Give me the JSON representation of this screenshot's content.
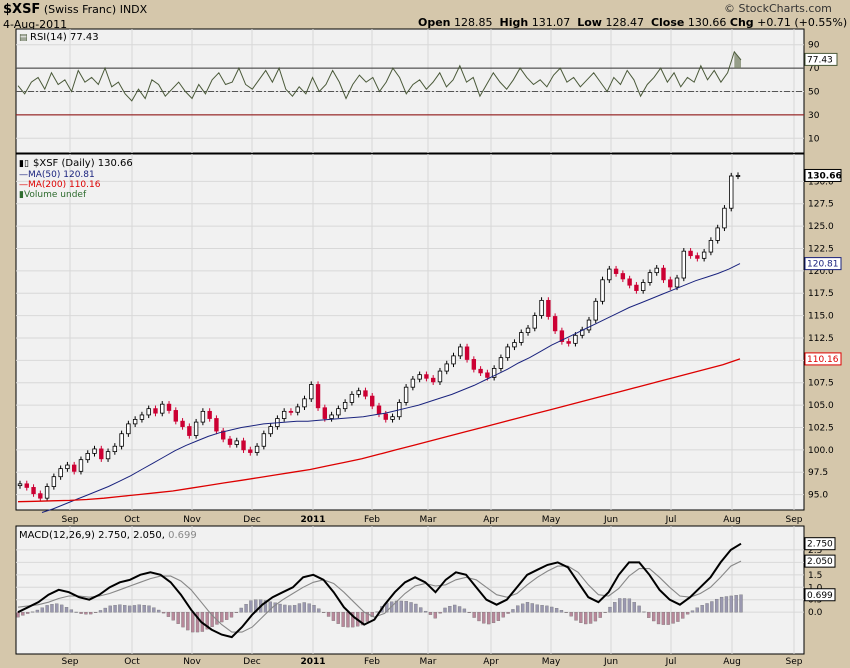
{
  "header": {
    "symbol": "$XSF",
    "name": "(Swiss Franc)",
    "exchange": "INDX",
    "date": "4-Aug-2011",
    "open_label": "Open",
    "open": "128.85",
    "high_label": "High",
    "high": "131.07",
    "low_label": "Low",
    "low": "128.47",
    "close_label": "Close",
    "close": "130.66",
    "chg_label": "Chg",
    "chg": "+0.71 (+0.55%)",
    "copyright": "© StockCharts.com"
  },
  "colors": {
    "up": "#000000",
    "down": "#cc0033",
    "ma50": "#1a237e",
    "ma200": "#dd0000",
    "rsi": "#4b5a3a",
    "panel_bg": "#f1f1f1"
  },
  "chart_data": [
    {
      "type": "line",
      "title": "RSI(14) 77.43",
      "series": [
        {
          "name": "RSI(14)",
          "last": 77.43,
          "values": [
            55,
            48,
            58,
            62,
            52,
            66,
            56,
            60,
            50,
            68,
            58,
            62,
            56,
            70,
            54,
            58,
            48,
            42,
            52,
            44,
            60,
            56,
            46,
            52,
            58,
            50,
            44,
            56,
            48,
            60,
            66,
            56,
            58,
            70,
            56,
            52,
            60,
            68,
            58,
            70,
            52,
            46,
            54,
            48,
            62,
            50,
            56,
            68,
            58,
            44,
            56,
            64,
            58,
            62,
            50,
            58,
            70,
            62,
            48,
            56,
            60,
            52,
            58,
            66,
            54,
            60,
            72,
            58,
            62,
            46,
            56,
            66,
            58,
            52,
            60,
            70,
            62,
            56,
            60,
            54,
            64,
            70,
            58,
            62,
            54,
            60,
            66,
            58,
            50,
            62,
            56,
            68,
            60,
            46,
            56,
            62,
            70,
            58,
            66,
            54,
            62,
            58,
            72,
            60,
            68,
            58,
            66,
            84,
            77
          ]
        }
      ],
      "ylim": [
        0,
        100
      ],
      "ticks": [
        10,
        30,
        50,
        70,
        90
      ],
      "reference_lines": [
        30,
        50,
        70
      ],
      "x_labels": [
        "Sep",
        "Oct",
        "Nov",
        "Dec",
        "2011",
        "Feb",
        "Mar",
        "Apr",
        "May",
        "Jun",
        "Jul",
        "Aug",
        "Sep"
      ]
    },
    {
      "type": "ohlc",
      "title": "$XSF (Daily) 130.66",
      "legend": [
        {
          "name": "MA(50) 120.81"
        },
        {
          "name": "MA(200) 110.16"
        },
        {
          "name": "Volume undef"
        }
      ],
      "close": [
        96.2,
        95.8,
        95.1,
        94.6,
        95.9,
        97.0,
        97.9,
        98.3,
        97.6,
        98.9,
        99.6,
        100.1,
        99.0,
        99.8,
        100.4,
        101.8,
        102.9,
        103.4,
        103.9,
        104.6,
        104.1,
        105.1,
        104.4,
        103.2,
        102.6,
        101.6,
        103.1,
        104.3,
        103.5,
        102.1,
        101.2,
        100.6,
        101.0,
        100.0,
        99.7,
        100.4,
        101.8,
        102.6,
        103.5,
        104.3,
        104.2,
        104.8,
        105.7,
        107.3,
        104.7,
        103.5,
        103.9,
        104.6,
        105.3,
        106.2,
        106.6,
        106.0,
        104.9,
        104.0,
        103.4,
        103.7,
        105.3,
        107.0,
        107.9,
        108.4,
        108.0,
        107.6,
        108.8,
        109.6,
        110.5,
        111.5,
        110.1,
        109.0,
        108.6,
        108.1,
        109.1,
        110.3,
        111.5,
        112.0,
        113.1,
        113.6,
        115.0,
        116.7,
        114.9,
        113.3,
        112.1,
        111.9,
        112.8,
        113.4,
        114.5,
        116.6,
        119.0,
        120.2,
        119.7,
        119.1,
        118.4,
        117.8,
        118.7,
        119.8,
        120.3,
        119.0,
        118.2,
        119.2,
        122.2,
        121.7,
        121.4,
        122.1,
        123.4,
        124.8,
        127.0,
        130.6,
        130.66
      ],
      "ma50": [
        93.0,
        93.4,
        93.9,
        94.4,
        94.9,
        95.4,
        95.9,
        96.5,
        97.1,
        97.8,
        98.5,
        99.2,
        99.9,
        100.5,
        101.0,
        101.5,
        101.9,
        102.2,
        102.5,
        102.7,
        102.9,
        103.0,
        103.1,
        103.2,
        103.2,
        103.3,
        103.4,
        103.5,
        103.6,
        103.7,
        103.9,
        104.1,
        104.4,
        104.7,
        105.0,
        105.4,
        105.8,
        106.2,
        106.7,
        107.2,
        107.8,
        108.4,
        109.0,
        109.7,
        110.3,
        111.0,
        111.7,
        112.3,
        112.9,
        113.5,
        114.1,
        114.7,
        115.3,
        115.9,
        116.4,
        116.9,
        117.4,
        117.9,
        118.4,
        118.9,
        119.3,
        119.7,
        120.2,
        120.81
      ],
      "ma200": [
        94.2,
        94.25,
        94.3,
        94.35,
        94.45,
        94.6,
        94.8,
        95.0,
        95.2,
        95.4,
        95.7,
        96.0,
        96.3,
        96.6,
        96.9,
        97.2,
        97.5,
        97.8,
        98.2,
        98.6,
        99.0,
        99.5,
        100.0,
        100.5,
        101.0,
        101.5,
        102.0,
        102.5,
        103.0,
        103.5,
        104.0,
        104.5,
        105.0,
        105.5,
        106.0,
        106.5,
        107.0,
        107.5,
        108.0,
        108.5,
        109.0,
        109.5,
        110.16
      ],
      "ylim": [
        93.5,
        132.5
      ],
      "ticks": [
        95.0,
        97.5,
        100.0,
        102.5,
        105.0,
        107.5,
        110.0,
        112.5,
        115.0,
        117.5,
        120.0,
        122.5,
        125.0,
        127.5,
        130.0
      ],
      "last_markers": [
        "130.66",
        "120.81",
        "110.16"
      ],
      "x_labels": [
        "Sep",
        "Oct",
        "Nov",
        "Dec",
        "2011",
        "Feb",
        "Mar",
        "Apr",
        "May",
        "Jun",
        "Jul",
        "Aug",
        "Sep"
      ]
    },
    {
      "type": "line",
      "title": "MACD(12,26,9) 2.750, 2.050, 0.699",
      "title_parts": [
        "MACD(12,26,9)",
        "2.750,",
        "2.050,",
        "0.699"
      ],
      "series": [
        {
          "name": "MACD",
          "last": 2.75,
          "values": [
            0.0,
            0.2,
            0.4,
            0.7,
            0.9,
            0.8,
            0.6,
            0.5,
            0.7,
            1.0,
            1.2,
            1.3,
            1.5,
            1.6,
            1.5,
            1.2,
            0.7,
            0.1,
            -0.4,
            -0.7,
            -0.9,
            -1.0,
            -0.6,
            -0.1,
            0.3,
            0.6,
            0.8,
            1.0,
            1.4,
            1.5,
            1.3,
            0.8,
            0.2,
            -0.2,
            -0.5,
            -0.3,
            0.3,
            0.8,
            1.2,
            1.4,
            1.2,
            0.8,
            1.3,
            1.6,
            1.5,
            1.0,
            0.5,
            0.3,
            0.5,
            1.0,
            1.5,
            1.7,
            1.9,
            2.0,
            1.8,
            1.2,
            0.6,
            0.4,
            0.8,
            1.5,
            2.0,
            2.0,
            1.5,
            0.9,
            0.5,
            0.3,
            0.6,
            1.0,
            1.4,
            2.0,
            2.5,
            2.75
          ]
        },
        {
          "name": "Signal",
          "last": 2.05,
          "values": [
            0.2,
            0.25,
            0.3,
            0.4,
            0.55,
            0.65,
            0.65,
            0.6,
            0.65,
            0.75,
            0.9,
            1.05,
            1.2,
            1.35,
            1.45,
            1.45,
            1.25,
            0.9,
            0.4,
            -0.1,
            -0.5,
            -0.8,
            -0.8,
            -0.6,
            -0.2,
            0.2,
            0.5,
            0.75,
            1.0,
            1.2,
            1.3,
            1.15,
            0.8,
            0.4,
            0.0,
            -0.2,
            -0.05,
            0.35,
            0.75,
            1.05,
            1.15,
            1.05,
            1.1,
            1.3,
            1.4,
            1.3,
            1.0,
            0.7,
            0.6,
            0.75,
            1.1,
            1.4,
            1.65,
            1.85,
            1.85,
            1.6,
            1.1,
            0.7,
            0.65,
            0.95,
            1.45,
            1.75,
            1.75,
            1.4,
            1.0,
            0.65,
            0.6,
            0.75,
            1.0,
            1.4,
            1.85,
            2.05
          ]
        },
        {
          "name": "Histogram",
          "last": 0.699
        }
      ],
      "ylim": [
        -1.6,
        3.3
      ],
      "ticks": [
        0.0,
        0.5,
        1.0,
        1.5,
        2.0,
        2.5
      ],
      "last_markers": [
        "2.750",
        "2.050",
        "0.699"
      ],
      "x_labels": [
        "Sep",
        "Oct",
        "Nov",
        "Dec",
        "2011",
        "Feb",
        "Mar",
        "Apr",
        "May",
        "Jun",
        "Jul",
        "Aug",
        "Sep"
      ]
    }
  ]
}
